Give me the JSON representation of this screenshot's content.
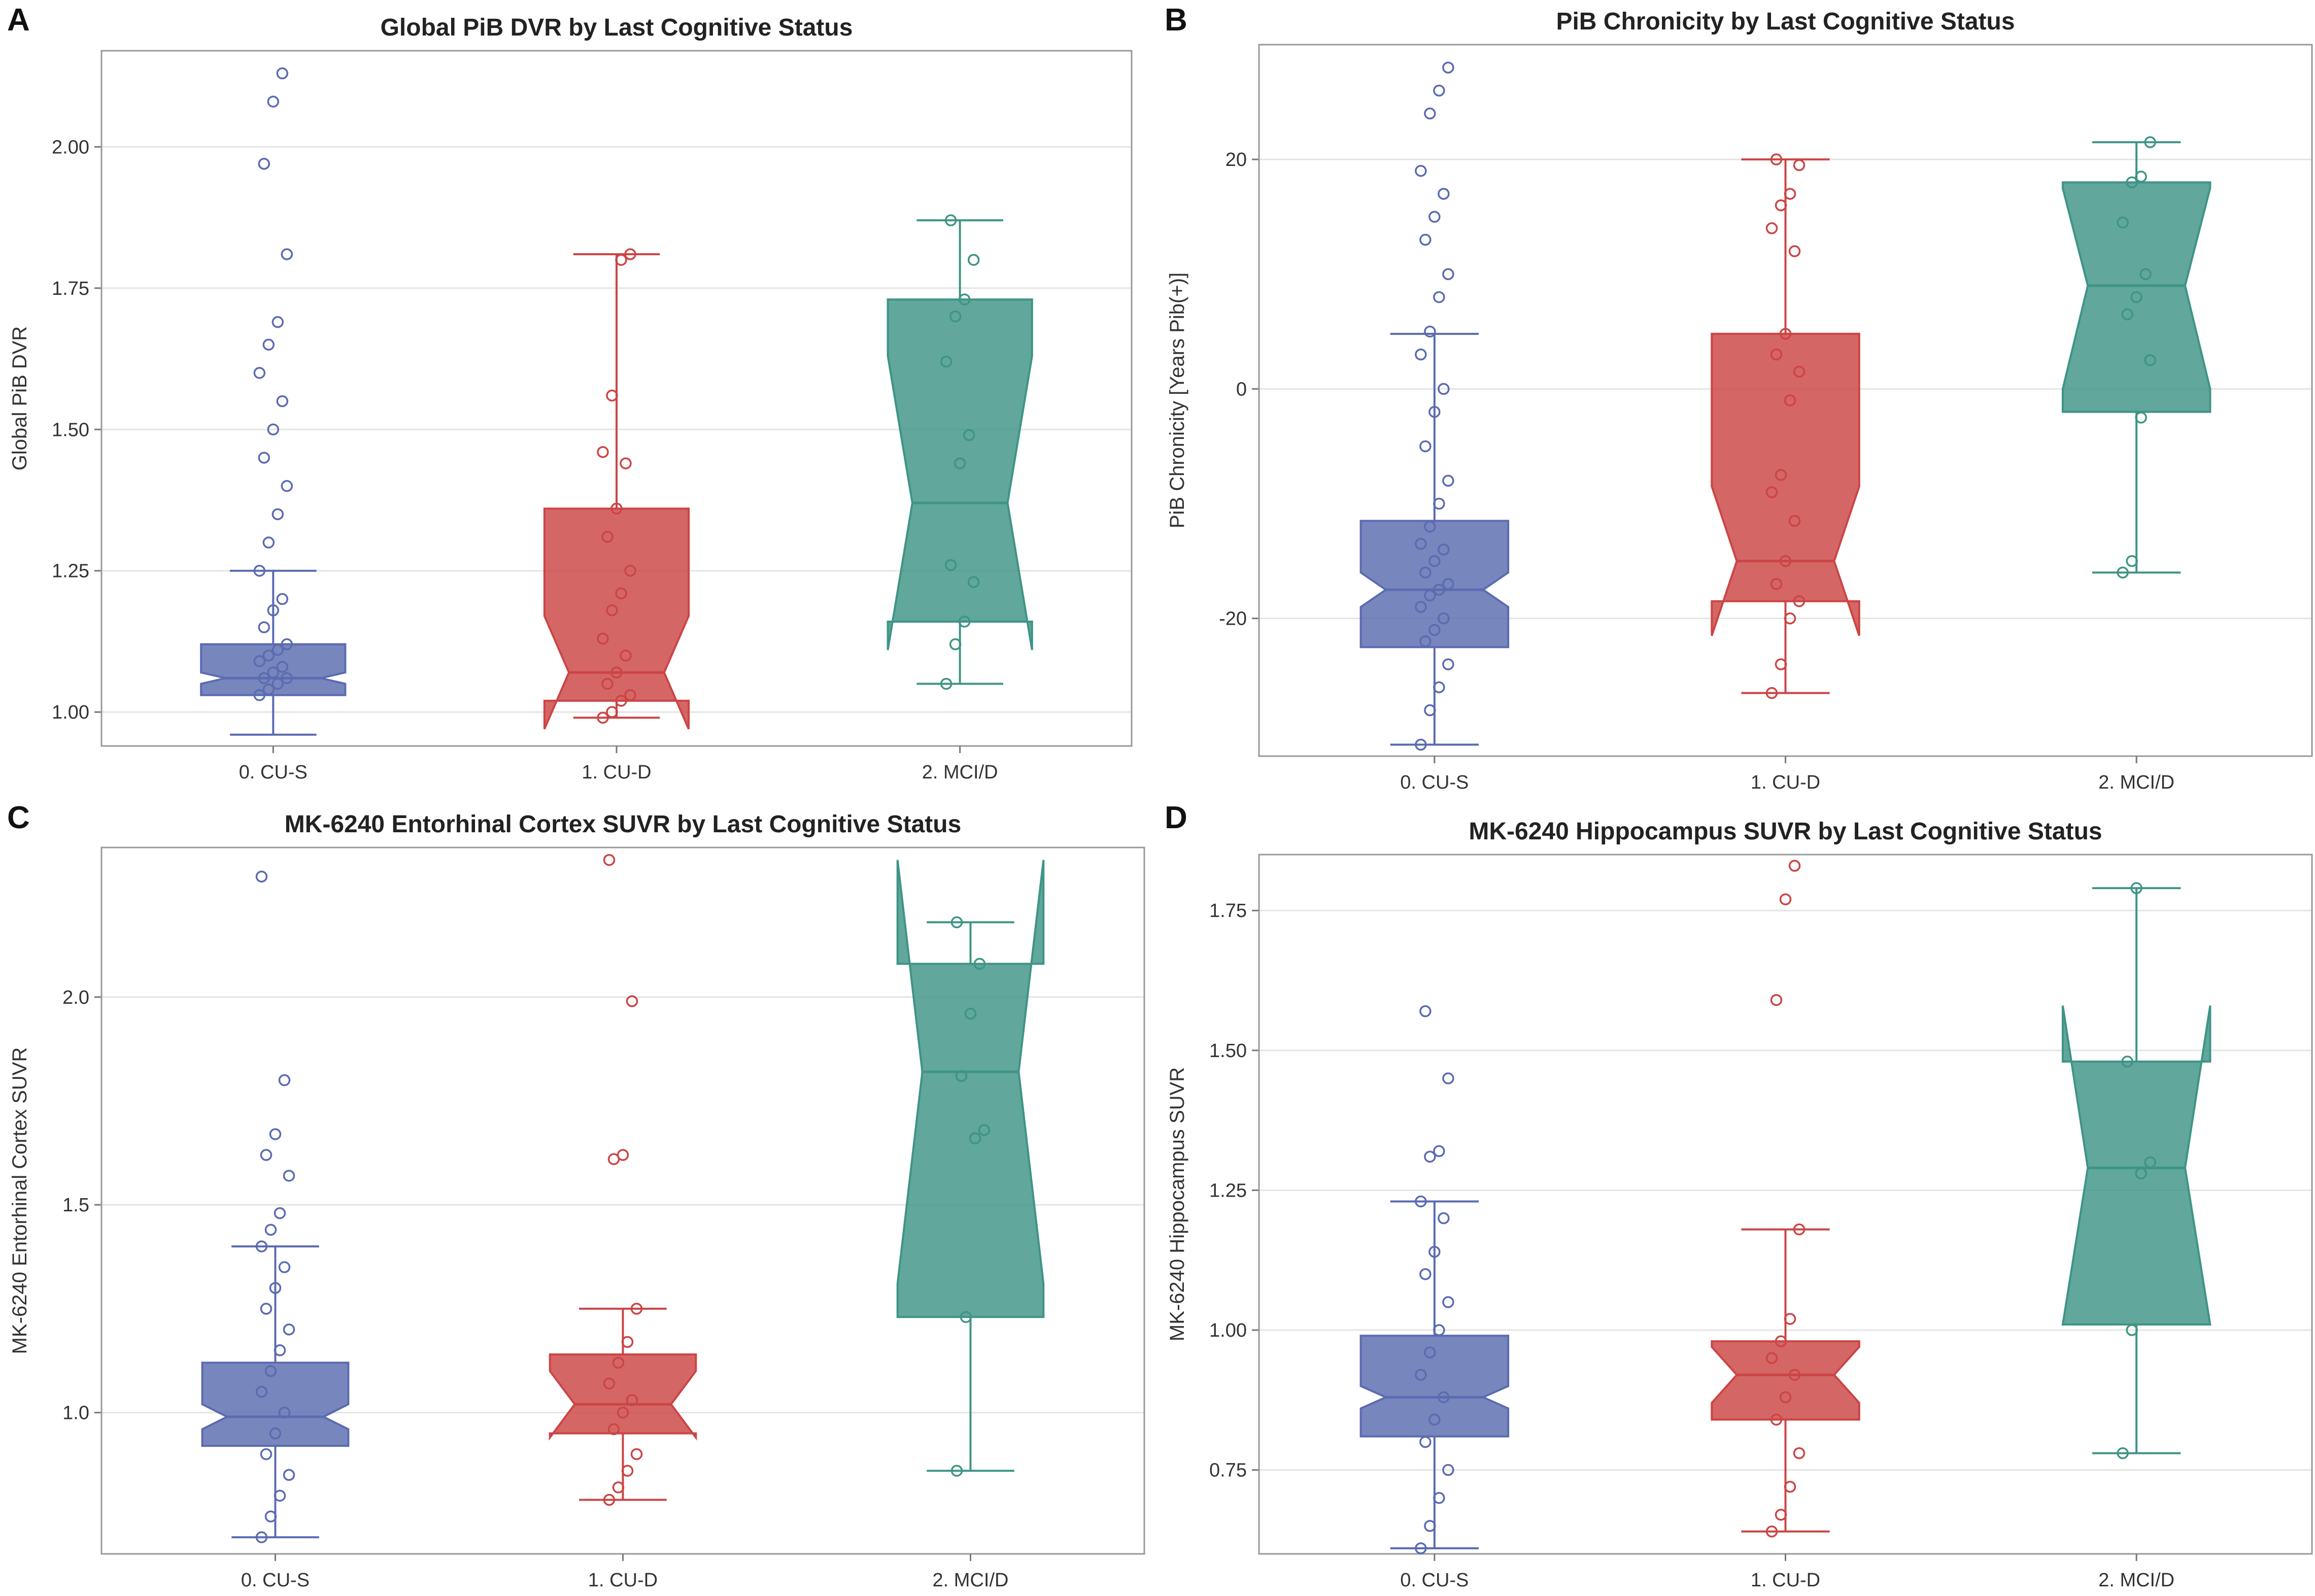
{
  "figure": {
    "background": "#ffffff"
  },
  "colors": {
    "0. CU-S": "#5a6bb0",
    "1. CU-D": "#cc4444",
    "2. MCI/D": "#3e9485",
    "grid": "#e4e4e4",
    "frame": "#999999"
  },
  "chart_data": [
    {
      "panel": "A",
      "type": "box",
      "title": "Global PiB DVR by Last Cognitive Status",
      "xlabel": "",
      "ylabel": "Global PiB DVR",
      "categories": [
        "0. CU-S",
        "1. CU-D",
        "2. MCI/D"
      ],
      "ylim": [
        0.94,
        2.17
      ],
      "yticks": [
        1.0,
        1.25,
        1.5,
        1.75,
        2.0
      ],
      "ytick_labels": [
        "1.00",
        "1.25",
        "1.50",
        "1.75",
        "2.00"
      ],
      "grid": true,
      "boxes": [
        {
          "category": "0. CU-S",
          "whisker_low": 0.96,
          "q1": 1.03,
          "median": 1.06,
          "q3": 1.12,
          "whisker_high": 1.25,
          "notch_low": 1.05,
          "notch_high": 1.07
        },
        {
          "category": "1. CU-D",
          "whisker_low": 0.99,
          "q1": 1.02,
          "median": 1.07,
          "q3": 1.36,
          "whisker_high": 1.81,
          "notch_low": 0.97,
          "notch_high": 1.17
        },
        {
          "category": "2. MCI/D",
          "whisker_low": 1.05,
          "q1": 1.16,
          "median": 1.37,
          "q3": 1.73,
          "whisker_high": 1.87,
          "notch_low": 1.11,
          "notch_high": 1.63
        }
      ],
      "points": [
        [
          1.03,
          1.04,
          1.05,
          1.06,
          1.06,
          1.07,
          1.08,
          1.09,
          1.1,
          1.11,
          1.12,
          1.15,
          1.18,
          1.2,
          1.25,
          1.3,
          1.35,
          1.4,
          1.45,
          1.5,
          1.55,
          1.6,
          1.65,
          1.69,
          1.81,
          1.97,
          2.08,
          2.13
        ],
        [
          0.99,
          1.0,
          1.02,
          1.03,
          1.05,
          1.07,
          1.1,
          1.13,
          1.18,
          1.21,
          1.25,
          1.31,
          1.36,
          1.44,
          1.46,
          1.56,
          1.8,
          1.81
        ],
        [
          1.05,
          1.12,
          1.16,
          1.23,
          1.26,
          1.44,
          1.49,
          1.62,
          1.7,
          1.73,
          1.8,
          1.87
        ]
      ]
    },
    {
      "panel": "B",
      "type": "box",
      "title": "PiB Chronicity by Last Cognitive Status",
      "xlabel": "",
      "ylabel": "PiB Chronicity [Years Pib(+)]",
      "categories": [
        "0. CU-S",
        "1. CU-D",
        "2. MCI/D"
      ],
      "ylim": [
        -32,
        30
      ],
      "yticks": [
        -20,
        0,
        20
      ],
      "ytick_labels": [
        "-20",
        "0",
        "20"
      ],
      "grid": true,
      "boxes": [
        {
          "category": "0. CU-S",
          "whisker_low": -31,
          "q1": -22.5,
          "median": -17.5,
          "q3": -11.5,
          "whisker_high": 4.8,
          "notch_low": -19,
          "notch_high": -16
        },
        {
          "category": "1. CU-D",
          "whisker_low": -26.5,
          "q1": -18.5,
          "median": -15,
          "q3": 4.8,
          "whisker_high": 20,
          "notch_low": -21.5,
          "notch_high": -8.5
        },
        {
          "category": "2. MCI/D",
          "whisker_low": -16,
          "q1": -2,
          "median": 9,
          "q3": 18,
          "whisker_high": 21.5,
          "notch_low": 0,
          "notch_high": 17.5
        }
      ],
      "points": [
        [
          -31,
          -28,
          -26,
          -24,
          -22,
          -21,
          -20,
          -19,
          -18,
          -17.5,
          -17,
          -16,
          -15,
          -14,
          -13.5,
          -12,
          -10,
          -8,
          -5,
          -2,
          0,
          3,
          5,
          8,
          10,
          13,
          15,
          17,
          19,
          24,
          26,
          28
        ],
        [
          -26.5,
          -24,
          -20,
          -18.5,
          -17,
          -15,
          -11.5,
          -9,
          -7.5,
          -1,
          1.5,
          3,
          4.8,
          12,
          14,
          16,
          17,
          19.5,
          20
        ],
        [
          -16,
          -15,
          -2.5,
          2.5,
          6.5,
          8,
          10,
          14.5,
          18,
          18.5,
          21.5
        ]
      ]
    },
    {
      "panel": "C",
      "type": "box",
      "title": "MK-6240 Entorhinal Cortex SUVR by Last Cognitive Status",
      "xlabel": "",
      "ylabel": "MK-6240 Entorhinal Cortex SUVR",
      "categories": [
        "0. CU-S",
        "1. CU-D",
        "2. MCI/D"
      ],
      "ylim": [
        0.66,
        2.36
      ],
      "yticks": [
        1.0,
        1.5,
        2.0
      ],
      "ytick_labels": [
        "1.0",
        "1.5",
        "2.0"
      ],
      "grid": true,
      "boxes": [
        {
          "category": "0. CU-S",
          "whisker_low": 0.7,
          "q1": 0.92,
          "median": 0.99,
          "q3": 1.12,
          "whisker_high": 1.4,
          "notch_low": 0.96,
          "notch_high": 1.02
        },
        {
          "category": "1. CU-D",
          "whisker_low": 0.79,
          "q1": 0.95,
          "median": 1.02,
          "q3": 1.14,
          "whisker_high": 1.25,
          "notch_low": 0.94,
          "notch_high": 1.1
        },
        {
          "category": "2. MCI/D",
          "whisker_low": 0.86,
          "q1": 1.23,
          "median": 1.82,
          "q3": 2.08,
          "whisker_high": 2.18,
          "notch_low": 1.31,
          "notch_high": 2.33
        }
      ],
      "points": [
        [
          0.7,
          0.75,
          0.8,
          0.85,
          0.9,
          0.95,
          1.0,
          1.05,
          1.1,
          1.15,
          1.2,
          1.25,
          1.3,
          1.35,
          1.4,
          1.44,
          1.48,
          1.57,
          1.62,
          1.67,
          1.8,
          2.29
        ],
        [
          0.79,
          0.82,
          0.86,
          0.9,
          0.96,
          1.0,
          1.03,
          1.07,
          1.12,
          1.17,
          1.25,
          1.61,
          1.62,
          1.99,
          2.33
        ],
        [
          0.86,
          1.23,
          1.66,
          1.68,
          1.81,
          1.96,
          2.08,
          2.18
        ]
      ]
    },
    {
      "panel": "D",
      "type": "box",
      "title": "MK-6240 Hippocampus SUVR by Last Cognitive Status",
      "xlabel": "",
      "ylabel": "MK-6240 Hippocampus SUVR",
      "categories": [
        "0. CU-S",
        "1. CU-D",
        "2. MCI/D"
      ],
      "ylim": [
        0.6,
        1.85
      ],
      "yticks": [
        0.75,
        1.0,
        1.25,
        1.5,
        1.75
      ],
      "ytick_labels": [
        "0.75",
        "1.00",
        "1.25",
        "1.50",
        "1.75"
      ],
      "grid": true,
      "boxes": [
        {
          "category": "0. CU-S",
          "whisker_low": 0.61,
          "q1": 0.81,
          "median": 0.88,
          "q3": 0.99,
          "whisker_high": 1.23,
          "notch_low": 0.86,
          "notch_high": 0.9
        },
        {
          "category": "1. CU-D",
          "whisker_low": 0.64,
          "q1": 0.84,
          "median": 0.92,
          "q3": 0.98,
          "whisker_high": 1.18,
          "notch_low": 0.87,
          "notch_high": 0.97
        },
        {
          "category": "2. MCI/D",
          "whisker_low": 0.78,
          "q1": 1.01,
          "median": 1.29,
          "q3": 1.48,
          "whisker_high": 1.79,
          "notch_low": 1.01,
          "notch_high": 1.58
        }
      ],
      "points": [
        [
          0.61,
          0.65,
          0.7,
          0.75,
          0.8,
          0.84,
          0.88,
          0.92,
          0.96,
          1.0,
          1.05,
          1.1,
          1.14,
          1.2,
          1.23,
          1.31,
          1.32,
          1.45,
          1.57
        ],
        [
          0.64,
          0.67,
          0.72,
          0.78,
          0.84,
          0.88,
          0.92,
          0.95,
          0.98,
          1.02,
          1.18,
          1.59,
          1.77,
          1.83
        ],
        [
          0.78,
          1.0,
          1.28,
          1.3,
          1.48,
          1.79
        ]
      ]
    }
  ]
}
